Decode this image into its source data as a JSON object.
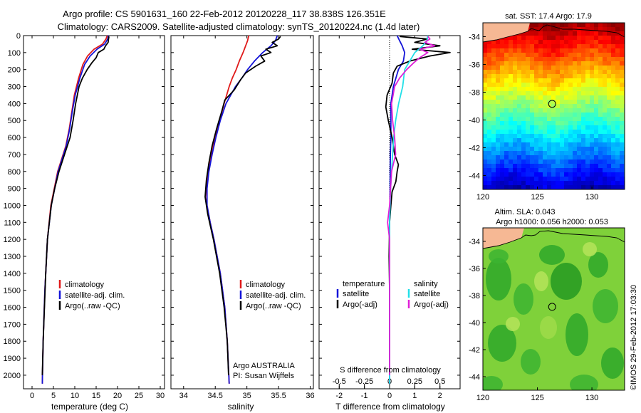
{
  "header": {
    "line1": "Argo profile: CS 5901631_160 22-Feb-2012 20120228_117 38.838S 126.351E",
    "line2": "Climatology: CARS2009. Satellite-adjusted climatology: synTS_20120224.nc (1.4d later)"
  },
  "colors": {
    "climatology": "#e01a1a",
    "satellite": "#1414d8",
    "argo": "#000000",
    "satellite_salinity": "#22e0e8",
    "argo_salinity": "#e020d8",
    "land": "#f6b894"
  },
  "panels": {
    "temperature": {
      "xlabel": "temperature (deg C)",
      "legend": [
        "climatology",
        "satellite-adj. clim.",
        "Argo(..raw -QC)"
      ]
    },
    "salinity": {
      "xlabel": "salinity",
      "legend": [
        "climatology",
        "satellite-adj. clim.",
        "Argo(..raw -QC)"
      ],
      "institution": "Argo AUSTRALIA",
      "pi": "PI: Susan Wijffels"
    },
    "difference": {
      "xlabel": "T difference from climatology",
      "top_axis_label": "S difference from climatology",
      "legend_temperature_title": "temperature",
      "legend_salinity_title": "salinity",
      "legend_satellite": "satellite",
      "legend_argo": "Argo(-adj)"
    },
    "sst_map": {
      "title": "sat. SST: 17.4  Argo: 17.9"
    },
    "sla_map": {
      "title1": "Altim. SLA: 0.043",
      "title2": "Argo h1000: 0.056  h2000: 0.053"
    }
  },
  "footer_stamp": "©IMOS 29-Feb-2012 17:03:30",
  "chart_data": [
    {
      "type": "line",
      "name": "temperature profile",
      "xlabel": "temperature (deg C)",
      "ylabel": "",
      "xlim": [
        -2,
        31
      ],
      "xticks": [
        0,
        5,
        10,
        15,
        20,
        25,
        30
      ],
      "ylim": [
        0,
        2080
      ],
      "yticks": [
        0,
        100,
        200,
        300,
        400,
        500,
        600,
        700,
        800,
        900,
        1000,
        1100,
        1200,
        1300,
        1400,
        1500,
        1600,
        1700,
        1800,
        1900,
        2000
      ],
      "y_reversed": true,
      "legend_location": "lower-center",
      "series": [
        {
          "name": "climatology",
          "color": "#e01a1a",
          "depth": [
            0,
            20,
            50,
            80,
            120,
            170,
            250,
            350,
            450,
            550,
            650,
            800,
            1000,
            1200,
            1500,
            1800,
            2050
          ],
          "values": [
            17.6,
            17.3,
            16.5,
            14.5,
            13.0,
            11.9,
            10.9,
            9.9,
            9.3,
            8.7,
            7.9,
            6.0,
            4.4,
            3.6,
            3.0,
            2.6,
            2.4
          ]
        },
        {
          "name": "satellite-adj. clim.",
          "color": "#1414d8",
          "depth": [
            0,
            20,
            50,
            80,
            120,
            170,
            250,
            350,
            450,
            550,
            650,
            800,
            1000,
            1200,
            1500,
            1800,
            2050
          ],
          "values": [
            17.9,
            17.7,
            17.0,
            15.2,
            13.6,
            12.3,
            11.2,
            10.1,
            9.4,
            8.8,
            8.0,
            6.1,
            4.5,
            3.6,
            3.0,
            2.6,
            2.4
          ]
        },
        {
          "name": "Argo(..raw -QC)",
          "color": "#000000",
          "depth": [
            5,
            20,
            40,
            60,
            80,
            100,
            130,
            160,
            200,
            250,
            300,
            400,
            500,
            600,
            700,
            800,
            900,
            1000,
            1200,
            1400,
            1600,
            1800,
            2000
          ],
          "values": [
            18.0,
            17.9,
            17.8,
            17.2,
            16.8,
            15.5,
            15.0,
            14.0,
            12.9,
            11.8,
            11.0,
            10.2,
            9.6,
            8.9,
            7.6,
            6.3,
            5.3,
            4.5,
            3.6,
            3.2,
            2.9,
            2.6,
            2.4
          ]
        }
      ]
    },
    {
      "type": "line",
      "name": "salinity profile",
      "xlabel": "salinity",
      "ylabel": "",
      "xlim": [
        33.8,
        36.05
      ],
      "xticks": [
        34,
        34.5,
        35,
        35.5,
        36
      ],
      "xtick_labels": [
        "34",
        "34.5",
        "35",
        "35.5",
        "36"
      ],
      "ylim": [
        0,
        2080
      ],
      "y_reversed": true,
      "legend_location": "lower-right",
      "series": [
        {
          "name": "climatology",
          "color": "#e01a1a",
          "depth": [
            0,
            30,
            60,
            100,
            150,
            200,
            250,
            300,
            400,
            500,
            600,
            700,
            800,
            900,
            1000,
            1100,
            1200,
            1400,
            1600,
            1800,
            2050
          ],
          "values": [
            35.03,
            35.01,
            34.98,
            34.94,
            34.88,
            34.83,
            34.77,
            34.72,
            34.64,
            34.57,
            34.5,
            34.44,
            34.39,
            34.36,
            34.37,
            34.42,
            34.48,
            34.58,
            34.65,
            34.69,
            34.72
          ]
        },
        {
          "name": "satellite-adj. clim.",
          "color": "#1414d8",
          "depth": [
            0,
            30,
            60,
            100,
            150,
            200,
            250,
            300,
            400,
            500,
            600,
            700,
            800,
            900,
            1000,
            1100,
            1200,
            1400,
            1600,
            1800,
            2050
          ],
          "values": [
            35.48,
            35.45,
            35.38,
            35.25,
            35.12,
            35.01,
            34.92,
            34.82,
            34.67,
            34.58,
            34.51,
            34.45,
            34.4,
            34.37,
            34.37,
            34.42,
            34.48,
            34.58,
            34.65,
            34.69,
            34.72
          ]
        },
        {
          "name": "Argo(..raw -QC)",
          "color": "#000000",
          "depth": [
            5,
            20,
            40,
            60,
            80,
            100,
            120,
            150,
            180,
            220,
            260,
            320,
            380,
            450,
            550,
            650,
            750,
            850,
            950,
            1050,
            1200,
            1400,
            1600,
            1800,
            2000
          ],
          "values": [
            35.53,
            35.5,
            35.4,
            35.48,
            35.3,
            35.38,
            35.22,
            35.28,
            35.14,
            34.98,
            34.9,
            34.8,
            34.65,
            34.6,
            34.52,
            34.45,
            34.4,
            34.36,
            34.34,
            34.38,
            34.47,
            34.57,
            34.64,
            34.69,
            34.71
          ]
        }
      ]
    },
    {
      "type": "line",
      "name": "difference from climatology",
      "xlabel": "T difference from climatology",
      "top_axis_label": "S difference from climatology",
      "xlim": [
        -2.8,
        2.8
      ],
      "xticks": [
        -2,
        -1,
        0,
        1,
        2
      ],
      "top_xticks": [
        -0.5,
        -0.25,
        0,
        0.25,
        0.5
      ],
      "top_xtick_labels": [
        "-0.5",
        "-0.25",
        "0",
        "0.25",
        "0.5"
      ],
      "ylim": [
        0,
        2080
      ],
      "y_reversed": true,
      "zero_line": "dotted",
      "legend_location": "lower-center",
      "series": [
        {
          "name": "satellite",
          "group": "temperature",
          "color": "#1414d8",
          "depth": [
            0,
            30,
            60,
            100,
            150,
            200,
            300,
            400,
            500,
            600,
            700,
            900,
            1100,
            1400,
            1700,
            2050
          ],
          "values": [
            0.3,
            0.4,
            0.5,
            0.6,
            0.55,
            0.35,
            0.15,
            0.05,
            0.05,
            0.05,
            0.03,
            0.02,
            0.0,
            0.0,
            0.0,
            0.0
          ]
        },
        {
          "name": "Argo(-adj)",
          "group": "temperature",
          "color": "#000000",
          "depth": [
            5,
            20,
            40,
            60,
            80,
            100,
            120,
            150,
            180,
            220,
            280,
            350,
            420,
            500,
            600,
            700,
            760,
            800,
            860,
            920,
            1000,
            1100,
            1300,
            1500,
            1700,
            2000
          ],
          "values": [
            0.4,
            1.5,
            1.0,
            2.0,
            0.9,
            2.4,
            1.6,
            0.8,
            0.3,
            0.15,
            0.1,
            -0.1,
            -0.15,
            -0.05,
            0.1,
            0.2,
            0.35,
            0.3,
            0.25,
            0.1,
            0.05,
            0.0,
            -0.02,
            0.0,
            0.0,
            0.0
          ]
        },
        {
          "name": "satellite",
          "group": "salinity",
          "color": "#22e0e8",
          "depth": [
            0,
            30,
            60,
            100,
            150,
            200,
            300,
            400,
            500,
            600,
            700,
            800,
            900,
            1100,
            1400,
            1700,
            2050
          ],
          "values": [
            0.38,
            0.37,
            0.33,
            0.25,
            0.2,
            0.15,
            0.13,
            0.09,
            0.06,
            0.04,
            0.03,
            0.02,
            0.01,
            0.0,
            0.0,
            0.0,
            0.0
          ]
        },
        {
          "name": "Argo(-adj)",
          "group": "salinity",
          "color": "#e020d8",
          "depth": [
            5,
            20,
            40,
            60,
            80,
            100,
            130,
            160,
            200,
            250,
            300,
            400,
            500,
            600,
            700,
            800,
            900,
            1000,
            1100,
            1200,
            1400,
            1600,
            1800,
            2000
          ],
          "values": [
            0.38,
            0.4,
            0.35,
            0.45,
            0.3,
            0.38,
            0.3,
            0.24,
            0.17,
            0.1,
            0.05,
            0.02,
            0.03,
            0.05,
            0.06,
            0.02,
            0.01,
            0.0,
            -0.02,
            0.0,
            0.0,
            0.0,
            0.0,
            0.0
          ]
        }
      ]
    },
    {
      "type": "heatmap",
      "name": "satellite SST map",
      "title": "sat. SST: 17.4  Argo: 17.9",
      "xlim": [
        120,
        133
      ],
      "ylim": [
        -45,
        -33
      ],
      "xticks": [
        120,
        125,
        130
      ],
      "yticks": [
        -44,
        -42,
        -40,
        -38,
        -36,
        -34
      ],
      "float_position": {
        "lon": 126.351,
        "lat": -38.838
      }
    },
    {
      "type": "heatmap",
      "name": "altimeter SLA map",
      "title": "Altim. SLA: 0.043",
      "xlim": [
        120,
        133
      ],
      "ylim": [
        -45,
        -33
      ],
      "xticks": [
        120,
        125,
        130
      ],
      "yticks": [
        -44,
        -42,
        -40,
        -38,
        -36,
        -34
      ],
      "float_position": {
        "lon": 126.351,
        "lat": -38.838
      }
    }
  ]
}
